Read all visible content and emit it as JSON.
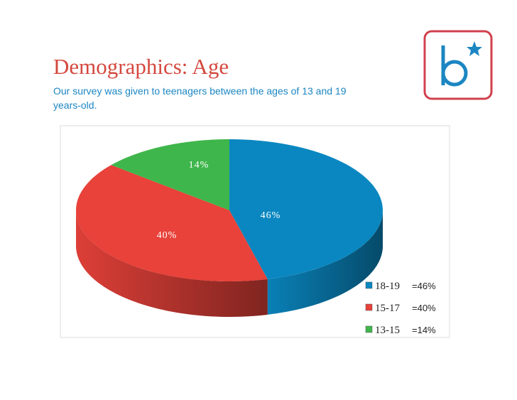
{
  "chart_data": {
    "type": "pie",
    "title": "Demographics: Age",
    "subtitle": [
      "Our survey was given to teenagers between the ages of 13 and 19",
      "years-old."
    ],
    "categories": [
      "18-19",
      "15-17",
      "13-15"
    ],
    "values": [
      46,
      40,
      14
    ],
    "value_labels": [
      "46%",
      "40%",
      "14%"
    ],
    "legend_labels": [
      "=46%",
      "=40%",
      "=14%"
    ],
    "colors": [
      "#0a87c0",
      "#e8423a",
      "#3fb64b"
    ]
  }
}
